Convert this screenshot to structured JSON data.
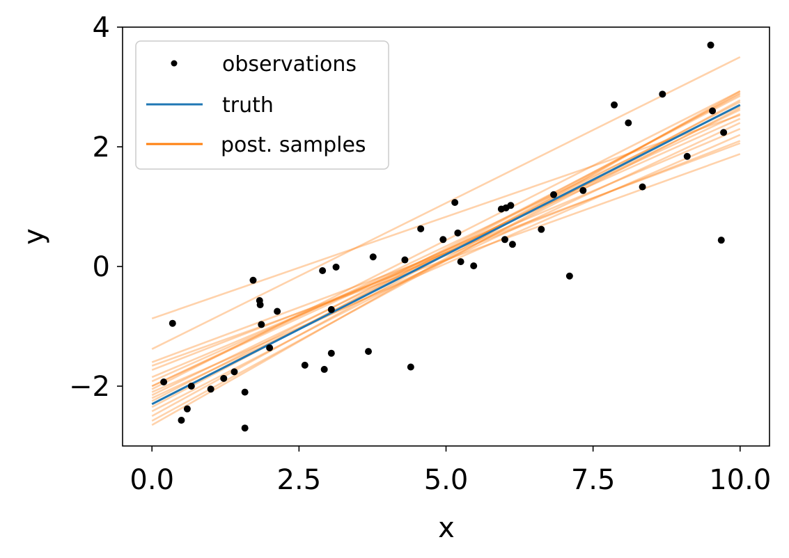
{
  "chart_data": {
    "type": "scatter",
    "title": "",
    "xlabel": "x",
    "ylabel": "y",
    "xlim": [
      -0.5,
      10.5
    ],
    "ylim": [
      -3.0,
      4.0
    ],
    "xticks": [
      0.0,
      2.5,
      5.0,
      7.5,
      10.0
    ],
    "xtick_labels": [
      "0.0",
      "2.5",
      "5.0",
      "7.5",
      "10.0"
    ],
    "yticks": [
      -2,
      0,
      2,
      4
    ],
    "ytick_labels": [
      "−2",
      "0",
      "2",
      "4"
    ],
    "grid": false,
    "legend": {
      "placement": "top-left",
      "entries": [
        {
          "label": "observations",
          "marker": "dot",
          "color": "#000000"
        },
        {
          "label": "truth",
          "marker": "line",
          "color": "#1f77b4"
        },
        {
          "label": "post. samples",
          "marker": "line",
          "color": "#ff7f0e"
        }
      ]
    },
    "observations": {
      "name": "observations",
      "color": "#000000",
      "points": [
        [
          0.2,
          -1.93
        ],
        [
          0.35,
          -0.95
        ],
        [
          0.5,
          -2.57
        ],
        [
          0.6,
          -2.38
        ],
        [
          0.67,
          -2.0
        ],
        [
          1.0,
          -2.05
        ],
        [
          1.22,
          -1.87
        ],
        [
          1.4,
          -1.76
        ],
        [
          1.58,
          -2.1
        ],
        [
          1.58,
          -2.7
        ],
        [
          1.72,
          -0.23
        ],
        [
          1.83,
          -0.57
        ],
        [
          1.84,
          -0.64
        ],
        [
          1.86,
          -0.97
        ],
        [
          2.0,
          -1.36
        ],
        [
          2.13,
          -0.75
        ],
        [
          2.6,
          -1.65
        ],
        [
          2.9,
          -0.07
        ],
        [
          2.93,
          -1.72
        ],
        [
          3.05,
          -1.45
        ],
        [
          3.05,
          -0.72
        ],
        [
          3.13,
          -0.01
        ],
        [
          3.68,
          -1.42
        ],
        [
          3.76,
          0.16
        ],
        [
          4.3,
          0.11
        ],
        [
          4.4,
          -1.68
        ],
        [
          4.57,
          0.63
        ],
        [
          4.95,
          0.45
        ],
        [
          5.15,
          1.07
        ],
        [
          5.2,
          0.56
        ],
        [
          5.25,
          0.08
        ],
        [
          5.47,
          0.01
        ],
        [
          5.94,
          0.96
        ],
        [
          6.0,
          0.45
        ],
        [
          6.02,
          0.98
        ],
        [
          6.1,
          1.02
        ],
        [
          6.13,
          0.37
        ],
        [
          6.62,
          0.62
        ],
        [
          6.83,
          1.2
        ],
        [
          7.1,
          -0.16
        ],
        [
          7.33,
          1.27
        ],
        [
          7.86,
          2.7
        ],
        [
          8.1,
          2.4
        ],
        [
          8.34,
          1.33
        ],
        [
          8.68,
          2.88
        ],
        [
          9.1,
          1.84
        ],
        [
          9.5,
          3.7
        ],
        [
          9.53,
          2.6
        ],
        [
          9.68,
          0.44
        ],
        [
          9.72,
          2.24
        ]
      ]
    },
    "truth": {
      "name": "truth",
      "color": "#1f77b4",
      "x": [
        0.0,
        10.0
      ],
      "y": [
        -2.3,
        2.7
      ]
    },
    "posterior_samples": {
      "name": "post. samples",
      "color": "#ff7f0e",
      "opacity": 0.35,
      "lines": [
        [
          -0.87,
          2.53
        ],
        [
          -1.38,
          3.5
        ],
        [
          -1.6,
          2.06
        ],
        [
          -1.66,
          1.88
        ],
        [
          -1.73,
          2.1
        ],
        [
          -1.85,
          2.3
        ],
        [
          -1.92,
          2.47
        ],
        [
          -2.0,
          2.55
        ],
        [
          -2.05,
          2.93
        ],
        [
          -2.1,
          2.2
        ],
        [
          -2.15,
          2.62
        ],
        [
          -2.2,
          2.4
        ],
        [
          -2.25,
          2.85
        ],
        [
          -2.3,
          2.75
        ],
        [
          -2.35,
          2.88
        ],
        [
          -2.42,
          2.65
        ],
        [
          -2.5,
          2.9
        ],
        [
          -2.58,
          2.78
        ],
        [
          -2.65,
          2.93
        ],
        [
          -2.0,
          2.68
        ]
      ]
    }
  }
}
